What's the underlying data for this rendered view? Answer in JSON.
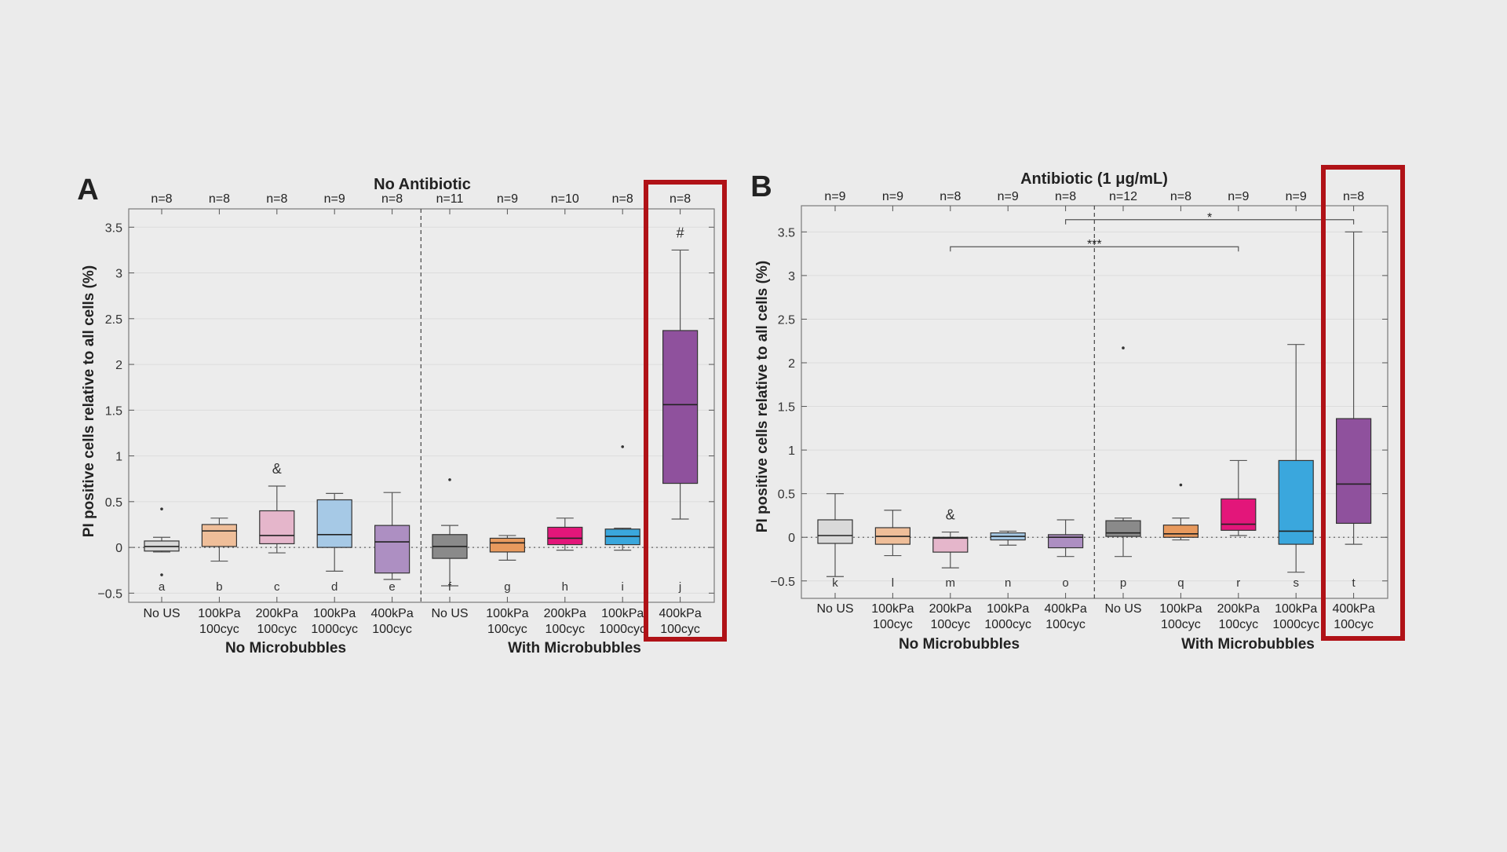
{
  "chart_data": [
    {
      "type": "box",
      "panel_label": "A",
      "title": "No Antibiotic",
      "ylabel": "PI positive cells relative to all cells  (%)",
      "ylim": [
        -0.6,
        3.7
      ],
      "yticks": [
        -0.5,
        0,
        0.5,
        1,
        1.5,
        2,
        2.5,
        3,
        3.5
      ],
      "yticklabels": [
        "−0.5",
        "0",
        "0.5",
        "1",
        "1.5",
        "2",
        "2.5",
        "3",
        "3.5"
      ],
      "group_labels": [
        "No Microbubbles",
        "With Microbubbles"
      ],
      "highlight": "j",
      "boxes": [
        {
          "letter": "a",
          "n": "n=8",
          "line1": "No US",
          "line2": "",
          "color": "#d9d9d9",
          "q1": -0.04,
          "median": 0.01,
          "q3": 0.07,
          "wlo": -0.05,
          "whi": 0.11,
          "outliers": [
            0.42,
            -0.3
          ]
        },
        {
          "letter": "b",
          "n": "n=8",
          "line1": "100kPa",
          "line2": "100cyc",
          "color": "#efbe99",
          "q1": 0.01,
          "median": 0.18,
          "q3": 0.25,
          "wlo": -0.15,
          "whi": 0.32,
          "outliers": []
        },
        {
          "letter": "c",
          "n": "n=8",
          "line1": "200kPa",
          "line2": "100cyc",
          "color": "#e5b6cb",
          "q1": 0.04,
          "median": 0.13,
          "q3": 0.4,
          "wlo": -0.06,
          "whi": 0.67,
          "outliers": [],
          "annotation": "&"
        },
        {
          "letter": "d",
          "n": "n=9",
          "line1": "100kPa",
          "line2": "1000cyc",
          "color": "#a6c9e6",
          "q1": 0.0,
          "median": 0.14,
          "q3": 0.52,
          "wlo": -0.26,
          "whi": 0.59,
          "outliers": []
        },
        {
          "letter": "e",
          "n": "n=8",
          "line1": "400kPa",
          "line2": "100cyc",
          "color": "#ad8fc2",
          "q1": -0.28,
          "median": 0.06,
          "q3": 0.24,
          "wlo": -0.35,
          "whi": 0.6,
          "outliers": []
        },
        {
          "letter": "f",
          "n": "n=11",
          "line1": "No US",
          "line2": "",
          "color": "#8a8a8a",
          "q1": -0.12,
          "median": 0.01,
          "q3": 0.14,
          "wlo": -0.42,
          "whi": 0.24,
          "outliers": [
            0.74
          ]
        },
        {
          "letter": "g",
          "n": "n=9",
          "line1": "100kPa",
          "line2": "100cyc",
          "color": "#e89a5e",
          "q1": -0.05,
          "median": 0.05,
          "q3": 0.1,
          "wlo": -0.14,
          "whi": 0.13,
          "outliers": []
        },
        {
          "letter": "h",
          "n": "n=10",
          "line1": "200kPa",
          "line2": "100cyc",
          "color": "#e3167a",
          "q1": 0.03,
          "median": 0.1,
          "q3": 0.22,
          "wlo": -0.03,
          "whi": 0.32,
          "outliers": []
        },
        {
          "letter": "i",
          "n": "n=8",
          "line1": "100kPa",
          "line2": "1000cyc",
          "color": "#3aa7dd",
          "q1": 0.03,
          "median": 0.12,
          "q3": 0.2,
          "wlo": -0.03,
          "whi": 0.21,
          "outliers": [
            1.1
          ]
        },
        {
          "letter": "j",
          "n": "n=8",
          "line1": "400kPa",
          "line2": "100cyc",
          "color": "#8f519d",
          "q1": 0.7,
          "median": 1.56,
          "q3": 2.37,
          "wlo": 0.31,
          "whi": 3.25,
          "outliers": [],
          "annotation": "#"
        }
      ],
      "significance": []
    },
    {
      "type": "box",
      "panel_label": "B",
      "title": "Antibiotic (1 μg/mL)",
      "ylabel": "PI positive cells relative to all cells  (%)",
      "ylim": [
        -0.7,
        3.8
      ],
      "yticks": [
        -0.5,
        0,
        0.5,
        1,
        1.5,
        2,
        2.5,
        3,
        3.5
      ],
      "yticklabels": [
        "−0.5",
        "0",
        "0.5",
        "1",
        "1.5",
        "2",
        "2.5",
        "3",
        "3.5"
      ],
      "group_labels": [
        "No Microbubbles",
        "With Microbubbles"
      ],
      "highlight": "t",
      "boxes": [
        {
          "letter": "k",
          "n": "n=9",
          "line1": "No US",
          "line2": "",
          "color": "#d9d9d9",
          "q1": -0.07,
          "median": 0.02,
          "q3": 0.2,
          "wlo": -0.45,
          "whi": 0.5,
          "outliers": []
        },
        {
          "letter": "l",
          "n": "n=9",
          "line1": "100kPa",
          "line2": "100cyc",
          "color": "#efbe99",
          "q1": -0.08,
          "median": 0.01,
          "q3": 0.11,
          "wlo": -0.21,
          "whi": 0.31,
          "outliers": []
        },
        {
          "letter": "m",
          "n": "n=8",
          "line1": "200kPa",
          "line2": "100cyc",
          "color": "#e5b6cb",
          "q1": -0.17,
          "median": -0.01,
          "q3": 0.0,
          "wlo": -0.35,
          "whi": 0.06,
          "outliers": [],
          "annotation": "&"
        },
        {
          "letter": "n",
          "n": "n=9",
          "line1": "100kPa",
          "line2": "1000cyc",
          "color": "#a6c9e6",
          "q1": -0.03,
          "median": 0.01,
          "q3": 0.05,
          "wlo": -0.09,
          "whi": 0.07,
          "outliers": []
        },
        {
          "letter": "o",
          "n": "n=8",
          "line1": "400kPa",
          "line2": "100cyc",
          "color": "#ad8fc2",
          "q1": -0.12,
          "median": 0.0,
          "q3": 0.03,
          "wlo": -0.22,
          "whi": 0.2,
          "outliers": []
        },
        {
          "letter": "p",
          "n": "n=12",
          "line1": "No US",
          "line2": "",
          "color": "#8a8a8a",
          "q1": 0.01,
          "median": 0.05,
          "q3": 0.19,
          "wlo": -0.22,
          "whi": 0.22,
          "outliers": [
            2.17
          ]
        },
        {
          "letter": "q",
          "n": "n=8",
          "line1": "100kPa",
          "line2": "100cyc",
          "color": "#e89a5e",
          "q1": 0.0,
          "median": 0.04,
          "q3": 0.14,
          "wlo": -0.03,
          "whi": 0.22,
          "outliers": [
            0.6
          ]
        },
        {
          "letter": "r",
          "n": "n=9",
          "line1": "200kPa",
          "line2": "100cyc",
          "color": "#e3167a",
          "q1": 0.08,
          "median": 0.15,
          "q3": 0.44,
          "wlo": 0.02,
          "whi": 0.88,
          "outliers": []
        },
        {
          "letter": "s",
          "n": "n=9",
          "line1": "100kPa",
          "line2": "1000cyc",
          "color": "#3aa7dd",
          "q1": -0.08,
          "median": 0.07,
          "q3": 0.88,
          "wlo": -0.4,
          "whi": 2.21,
          "outliers": []
        },
        {
          "letter": "t",
          "n": "n=8",
          "line1": "400kPa",
          "line2": "100cyc",
          "color": "#8f519d",
          "q1": 0.16,
          "median": 0.61,
          "q3": 1.36,
          "wlo": -0.08,
          "whi": 3.5,
          "outliers": []
        }
      ],
      "significance": [
        {
          "from": "o",
          "to": "t",
          "y": 3.64,
          "label": "*"
        },
        {
          "from": "m",
          "to": "r",
          "y": 3.33,
          "label": "***"
        }
      ]
    }
  ]
}
